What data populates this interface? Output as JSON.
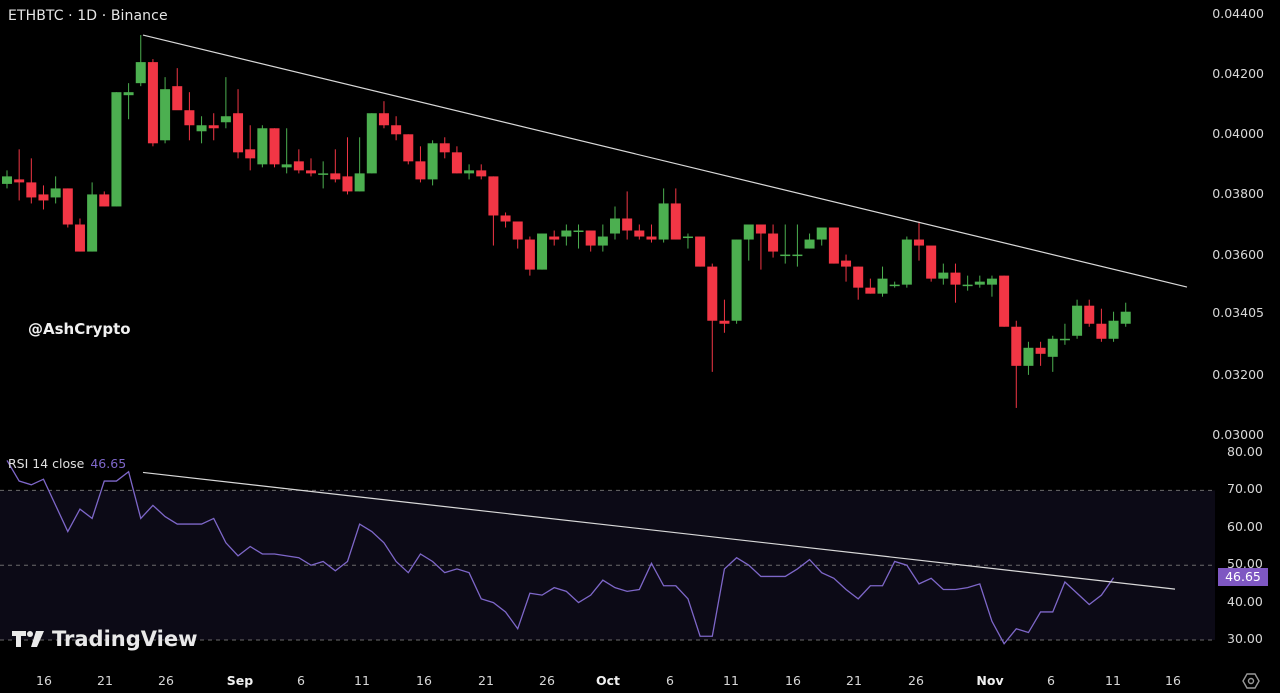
{
  "header": {
    "title": "ETHBTC · 1D · Binance"
  },
  "watermark": {
    "user": "@AshCrypto",
    "brand": "TradingView"
  },
  "rsi": {
    "legend_name": "RSI 14 close",
    "legend_value": "46.65",
    "badge_value": "46.65"
  },
  "colors": {
    "up": "#4caf50",
    "down": "#f23645",
    "rsi_line": "#7e67c9",
    "trendline": "#d9d9d9",
    "rsi_bg": "#0c0a16",
    "badge": "#7e57c2"
  },
  "price_axis": {
    "labels": [
      "0.04400",
      "0.04200",
      "0.04000",
      "0.03800",
      "0.03600",
      "0.03405",
      "0.03200",
      "0.03000"
    ]
  },
  "rsi_axis": {
    "labels": [
      "80.00",
      "70.00",
      "60.00",
      "50.00",
      "40.00",
      "30.00"
    ]
  },
  "time_axis": {
    "labels": [
      {
        "text": "16",
        "x": 44,
        "major": false
      },
      {
        "text": "21",
        "x": 105,
        "major": false
      },
      {
        "text": "26",
        "x": 166,
        "major": false
      },
      {
        "text": "Sep",
        "x": 240,
        "major": true
      },
      {
        "text": "6",
        "x": 301,
        "major": false
      },
      {
        "text": "11",
        "x": 362,
        "major": false
      },
      {
        "text": "16",
        "x": 424,
        "major": false
      },
      {
        "text": "21",
        "x": 486,
        "major": false
      },
      {
        "text": "26",
        "x": 547,
        "major": false
      },
      {
        "text": "Oct",
        "x": 608,
        "major": true
      },
      {
        "text": "6",
        "x": 670,
        "major": false
      },
      {
        "text": "11",
        "x": 731,
        "major": false
      },
      {
        "text": "16",
        "x": 793,
        "major": false
      },
      {
        "text": "21",
        "x": 854,
        "major": false
      },
      {
        "text": "26",
        "x": 916,
        "major": false
      },
      {
        "text": "Nov",
        "x": 990,
        "major": true
      },
      {
        "text": "6",
        "x": 1051,
        "major": false
      },
      {
        "text": "11",
        "x": 1113,
        "major": false
      },
      {
        "text": "16",
        "x": 1173,
        "major": false
      }
    ]
  },
  "chart_data": [
    {
      "type": "candlestick",
      "title": "ETHBTC · 1D · Binance",
      "ylim": [
        0.0297,
        0.0444
      ],
      "y_ticks": [
        0.044,
        0.042,
        0.04,
        0.038,
        0.036,
        0.03405,
        0.032,
        0.03
      ],
      "x_ticks": [
        "16",
        "21",
        "26",
        "Sep",
        "6",
        "11",
        "16",
        "21",
        "26",
        "Oct",
        "6",
        "11",
        "16",
        "21",
        "26",
        "Nov",
        "6",
        "11",
        "16"
      ],
      "last_price_label": 0.03405,
      "trendline": {
        "from": {
          "x": 143,
          "price": 0.0433
        },
        "to": {
          "x": 1187,
          "price": 0.03492
        }
      },
      "candles": [
        [
          0.03835,
          0.0388,
          0.0382,
          0.0386
        ],
        [
          0.0385,
          0.0395,
          0.0378,
          0.0384
        ],
        [
          0.0384,
          0.0392,
          0.0377,
          0.0379
        ],
        [
          0.038,
          0.0383,
          0.0375,
          0.0378
        ],
        [
          0.0379,
          0.0386,
          0.0377,
          0.0382
        ],
        [
          0.0382,
          0.0382,
          0.0369,
          0.037
        ],
        [
          0.037,
          0.0372,
          0.0361,
          0.0361
        ],
        [
          0.0361,
          0.0384,
          0.0361,
          0.038
        ],
        [
          0.038,
          0.0381,
          0.0376,
          0.0376
        ],
        [
          0.0376,
          0.0414,
          0.0376,
          0.0414
        ],
        [
          0.0413,
          0.0417,
          0.0405,
          0.0414
        ],
        [
          0.0417,
          0.0433,
          0.0416,
          0.0424
        ],
        [
          0.0424,
          0.0425,
          0.0396,
          0.0397
        ],
        [
          0.0398,
          0.0419,
          0.0397,
          0.0415
        ],
        [
          0.0416,
          0.0422,
          0.0411,
          0.0408
        ],
        [
          0.0408,
          0.0414,
          0.0398,
          0.0403
        ],
        [
          0.0401,
          0.0406,
          0.0397,
          0.0403
        ],
        [
          0.0403,
          0.0407,
          0.0398,
          0.0402
        ],
        [
          0.0404,
          0.0419,
          0.0402,
          0.0406
        ],
        [
          0.0407,
          0.0415,
          0.0392,
          0.0394
        ],
        [
          0.0395,
          0.0403,
          0.0388,
          0.0392
        ],
        [
          0.039,
          0.0403,
          0.0389,
          0.0402
        ],
        [
          0.0402,
          0.0402,
          0.0389,
          0.039
        ],
        [
          0.0389,
          0.0402,
          0.0387,
          0.039
        ],
        [
          0.0391,
          0.0395,
          0.0387,
          0.0388
        ],
        [
          0.0388,
          0.0392,
          0.0386,
          0.0387
        ],
        [
          0.0387,
          0.0391,
          0.0382,
          0.0387
        ],
        [
          0.0387,
          0.0395,
          0.0384,
          0.0385
        ],
        [
          0.0386,
          0.0399,
          0.038,
          0.0381
        ],
        [
          0.0381,
          0.0399,
          0.0381,
          0.0387
        ],
        [
          0.0387,
          0.0407,
          0.0387,
          0.0407
        ],
        [
          0.0407,
          0.0411,
          0.0402,
          0.0403
        ],
        [
          0.0403,
          0.0406,
          0.0398,
          0.04
        ],
        [
          0.04,
          0.04,
          0.039,
          0.0391
        ],
        [
          0.0391,
          0.0396,
          0.0384,
          0.0385
        ],
        [
          0.0385,
          0.0398,
          0.0383,
          0.0397
        ],
        [
          0.0397,
          0.0399,
          0.0392,
          0.0394
        ],
        [
          0.0394,
          0.0396,
          0.0387,
          0.0387
        ],
        [
          0.0387,
          0.039,
          0.0385,
          0.0388
        ],
        [
          0.0388,
          0.039,
          0.0385,
          0.0386
        ],
        [
          0.0386,
          0.0386,
          0.0363,
          0.0373
        ],
        [
          0.0373,
          0.0374,
          0.0369,
          0.0371
        ],
        [
          0.0371,
          0.0371,
          0.0362,
          0.0365
        ],
        [
          0.0365,
          0.0366,
          0.0353,
          0.0355
        ],
        [
          0.0355,
          0.0367,
          0.0355,
          0.0367
        ],
        [
          0.0366,
          0.0368,
          0.0363,
          0.0365
        ],
        [
          0.0366,
          0.037,
          0.0363,
          0.0368
        ],
        [
          0.0368,
          0.037,
          0.0362,
          0.0368
        ],
        [
          0.0368,
          0.0368,
          0.0361,
          0.0363
        ],
        [
          0.0363,
          0.037,
          0.0361,
          0.0366
        ],
        [
          0.0367,
          0.0376,
          0.0365,
          0.0372
        ],
        [
          0.0372,
          0.0381,
          0.0365,
          0.0368
        ],
        [
          0.0368,
          0.037,
          0.0365,
          0.0366
        ],
        [
          0.0366,
          0.037,
          0.0364,
          0.0365
        ],
        [
          0.0365,
          0.0382,
          0.0364,
          0.0377
        ],
        [
          0.0377,
          0.0382,
          0.0365,
          0.0365
        ],
        [
          0.0366,
          0.0367,
          0.0362,
          0.0366
        ],
        [
          0.0366,
          0.0366,
          0.0356,
          0.0356
        ],
        [
          0.0356,
          0.0357,
          0.0321,
          0.0338
        ],
        [
          0.0338,
          0.0345,
          0.0334,
          0.0337
        ],
        [
          0.0338,
          0.0365,
          0.0337,
          0.0365
        ],
        [
          0.0365,
          0.037,
          0.0358,
          0.037
        ],
        [
          0.037,
          0.0369,
          0.0355,
          0.0367
        ],
        [
          0.0367,
          0.037,
          0.0359,
          0.0361
        ],
        [
          0.036,
          0.037,
          0.0357,
          0.036
        ],
        [
          0.036,
          0.037,
          0.0356,
          0.036
        ],
        [
          0.0362,
          0.0367,
          0.0362,
          0.0365
        ],
        [
          0.0365,
          0.0369,
          0.0363,
          0.0369
        ],
        [
          0.0369,
          0.0369,
          0.0357,
          0.0357
        ],
        [
          0.0358,
          0.036,
          0.0351,
          0.0356
        ],
        [
          0.0356,
          0.0356,
          0.0345,
          0.0349
        ],
        [
          0.0349,
          0.0352,
          0.0347,
          0.0347
        ],
        [
          0.0347,
          0.0356,
          0.0346,
          0.0352
        ],
        [
          0.035,
          0.0351,
          0.0349,
          0.035
        ],
        [
          0.035,
          0.0366,
          0.0349,
          0.0365
        ],
        [
          0.0365,
          0.0371,
          0.0358,
          0.0363
        ],
        [
          0.0363,
          0.0362,
          0.0351,
          0.0352
        ],
        [
          0.0352,
          0.0357,
          0.035,
          0.0354
        ],
        [
          0.0354,
          0.0357,
          0.0344,
          0.035
        ],
        [
          0.035,
          0.0353,
          0.0348,
          0.035
        ],
        [
          0.035,
          0.0353,
          0.0349,
          0.0351
        ],
        [
          0.035,
          0.0353,
          0.0346,
          0.0352
        ],
        [
          0.0353,
          0.0353,
          0.0336,
          0.0336
        ],
        [
          0.0336,
          0.0338,
          0.0309,
          0.0323
        ],
        [
          0.0323,
          0.0331,
          0.032,
          0.0329
        ],
        [
          0.0329,
          0.0331,
          0.0323,
          0.0327
        ],
        [
          0.0326,
          0.0333,
          0.0321,
          0.0332
        ],
        [
          0.0332,
          0.0337,
          0.033,
          0.0332
        ],
        [
          0.0333,
          0.0345,
          0.0332,
          0.0343
        ],
        [
          0.0343,
          0.0345,
          0.0336,
          0.0337
        ],
        [
          0.0337,
          0.0342,
          0.0331,
          0.0332
        ],
        [
          0.0332,
          0.0341,
          0.0331,
          0.0338
        ],
        [
          0.0337,
          0.0344,
          0.0336,
          0.0341
        ]
      ],
      "candle_format": [
        "open",
        "high",
        "low",
        "close"
      ]
    },
    {
      "type": "line",
      "title": "RSI 14 close",
      "current_value": 46.65,
      "ylim": [
        27,
        82
      ],
      "y_ticks": [
        80,
        70,
        60,
        50,
        40,
        30
      ],
      "levels": {
        "upper": 70,
        "middle": 50,
        "lower": 30
      },
      "trendline": {
        "from": {
          "x": 143,
          "value": 74.8
        },
        "to": {
          "x": 1175,
          "value": 43.6
        }
      },
      "values": [
        78,
        72.5,
        71.5,
        73,
        66,
        59,
        65,
        62.5,
        72.5,
        72.5,
        75,
        62.5,
        66,
        63,
        61,
        61,
        61,
        62.5,
        56,
        52.5,
        55,
        53,
        53,
        52.5,
        52,
        50,
        51,
        48.5,
        51,
        61,
        59,
        56,
        51,
        48,
        53,
        51,
        48,
        49,
        48,
        41,
        40,
        37.5,
        33,
        42.5,
        42,
        44,
        43,
        40,
        42,
        46,
        44,
        43,
        43.5,
        50.5,
        44.5,
        44.5,
        41,
        31,
        31,
        49,
        52,
        50,
        47,
        47,
        47,
        49,
        51.5,
        48,
        46.5,
        43.5,
        41,
        44.5,
        44.5,
        51,
        50,
        45,
        46.5,
        43.5,
        43.5,
        44,
        45,
        35,
        29,
        33,
        32,
        37.5,
        37.5,
        45.5,
        42.5,
        39.5,
        42,
        46.65
      ]
    }
  ]
}
